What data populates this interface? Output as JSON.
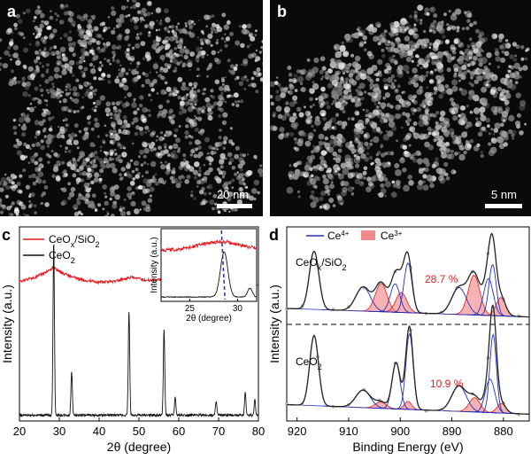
{
  "panels": {
    "a": {
      "label": "a",
      "scalebar": "20 nm"
    },
    "b": {
      "label": "b",
      "scalebar": "5 nm"
    },
    "c": {
      "label": "c"
    },
    "d": {
      "label": "d"
    }
  },
  "colors": {
    "red": "#e41a1c",
    "black": "#111111",
    "blue": "#1f2fbf",
    "pink": "#f28a8a",
    "fit": "#555555"
  },
  "chart_data": [
    {
      "type": "line",
      "panel": "c",
      "xlabel": "2θ (degree)",
      "ylabel": "Intensity (a.u.)",
      "xlim": [
        20,
        80
      ],
      "xticks": [
        20,
        30,
        40,
        50,
        60,
        70,
        80
      ],
      "legend": [
        "CeOx/SiO2",
        "CeO2"
      ],
      "legend_position": "top-left",
      "series": [
        {
          "name": "CeOx/SiO2",
          "color": "#e41a1c",
          "x": [
            20,
            24,
            26,
            28.5,
            31,
            35,
            40,
            44,
            48,
            52,
            56,
            60,
            64,
            68,
            72,
            76,
            80
          ],
          "y": [
            0.72,
            0.74,
            0.76,
            0.79,
            0.76,
            0.73,
            0.715,
            0.72,
            0.74,
            0.725,
            0.73,
            0.715,
            0.705,
            0.705,
            0.7,
            0.7,
            0.7
          ]
        },
        {
          "name": "CeO2",
          "color": "#111111",
          "peaks": [
            {
              "x": 28.6,
              "h": 0.9
            },
            {
              "x": 33.1,
              "h": 0.23
            },
            {
              "x": 47.5,
              "h": 0.54
            },
            {
              "x": 56.3,
              "h": 0.44
            },
            {
              "x": 59.1,
              "h": 0.09
            },
            {
              "x": 69.4,
              "h": 0.07
            },
            {
              "x": 76.7,
              "h": 0.12
            },
            {
              "x": 79.1,
              "h": 0.08
            }
          ]
        }
      ],
      "inset": {
        "xlabel": "2θ (degree)",
        "ylabel": "Intensity (a.u.)",
        "xlim": [
          22,
          32
        ],
        "xticks": [
          25,
          30
        ],
        "peak_position": 28.5
      }
    },
    {
      "type": "line",
      "panel": "d",
      "xlabel": "Binding Energy (eV)",
      "ylabel": "Intensity (a.u.)",
      "xlim": [
        922,
        875
      ],
      "xticks": [
        920,
        910,
        900,
        890,
        880
      ],
      "axis_reversed": true,
      "legend": [
        "Ce⁴⁺",
        "Ce³⁺"
      ],
      "legend_position": "top",
      "spectra": [
        {
          "name": "CeOx/SiO2",
          "ce3_percent": "28.7 %",
          "ce4_peaks": [
            {
              "x": 916.7,
              "h": 0.82,
              "w": 1.3
            },
            {
              "x": 907.2,
              "h": 0.34,
              "w": 2.0
            },
            {
              "x": 901.0,
              "h": 0.4,
              "w": 1.3
            },
            {
              "x": 898.5,
              "h": 0.7,
              "w": 1.1
            },
            {
              "x": 888.6,
              "h": 0.38,
              "w": 2.0
            },
            {
              "x": 882.9,
              "h": 0.52,
              "w": 1.3
            },
            {
              "x": 882.1,
              "h": 0.72,
              "w": 1.0
            }
          ],
          "ce3_peaks": [
            {
              "x": 903.7,
              "h": 0.4,
              "w": 1.6
            },
            {
              "x": 899.8,
              "h": 0.28,
              "w": 1.5
            },
            {
              "x": 885.7,
              "h": 0.56,
              "w": 1.6
            },
            {
              "x": 880.5,
              "h": 0.26,
              "w": 1.3
            }
          ]
        },
        {
          "name": "CeO2",
          "ce3_percent": "10.9 %",
          "ce4_peaks": [
            {
              "x": 916.7,
              "h": 0.88,
              "w": 1.2
            },
            {
              "x": 907.2,
              "h": 0.22,
              "w": 2.0
            },
            {
              "x": 900.8,
              "h": 0.58,
              "w": 1.1
            },
            {
              "x": 898.2,
              "h": 0.95,
              "w": 1.0
            },
            {
              "x": 888.6,
              "h": 0.32,
              "w": 2.0
            },
            {
              "x": 882.6,
              "h": 0.42,
              "w": 1.3
            },
            {
              "x": 882.0,
              "h": 0.98,
              "w": 0.9
            }
          ],
          "ce3_peaks": [
            {
              "x": 903.8,
              "h": 0.08,
              "w": 1.5
            },
            {
              "x": 898.5,
              "h": 0.1,
              "w": 1.0
            },
            {
              "x": 885.6,
              "h": 0.18,
              "w": 1.5
            },
            {
              "x": 880.4,
              "h": 0.12,
              "w": 1.2
            }
          ]
        }
      ]
    }
  ]
}
